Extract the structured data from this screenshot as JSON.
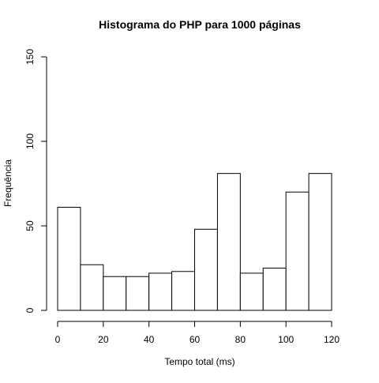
{
  "chart_data": {
    "type": "bar",
    "title": "Histograma do PHP para 1000 páginas",
    "xlabel": "Tempo total (ms)",
    "ylabel": "Frequência",
    "bin_edges": [
      0,
      10,
      20,
      30,
      40,
      50,
      60,
      70,
      80,
      90,
      100,
      110,
      120
    ],
    "values": [
      61,
      27,
      20,
      20,
      22,
      23,
      48,
      81,
      22,
      25,
      70,
      81
    ],
    "xlim": [
      0,
      120
    ],
    "ylim": [
      0,
      150
    ],
    "x_ticks": [
      "0",
      "20",
      "40",
      "60",
      "80",
      "100",
      "120"
    ],
    "y_ticks": [
      "0",
      "50",
      "100",
      "150"
    ],
    "bar_fill": "#ffffff",
    "bar_stroke": "#000000",
    "grid": false,
    "legend": "none"
  }
}
